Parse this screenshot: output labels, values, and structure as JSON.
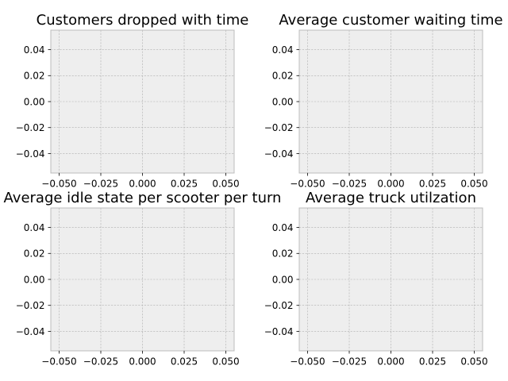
{
  "chart_data": [
    {
      "type": "line",
      "title": "Customers dropped with time",
      "xlabel": "",
      "ylabel": "",
      "xlim": [
        -0.055,
        0.055
      ],
      "ylim": [
        -0.055,
        0.055
      ],
      "xticks": [
        -0.05,
        -0.025,
        0.0,
        0.025,
        0.05
      ],
      "yticks": [
        -0.04,
        -0.02,
        0.0,
        0.02,
        0.04
      ],
      "xtick_labels": [
        "−0.050",
        "−0.025",
        "0.000",
        "0.025",
        "0.050"
      ],
      "ytick_labels": [
        "−0.04",
        "−0.02",
        "0.00",
        "0.02",
        "0.04"
      ],
      "grid": true,
      "series": [],
      "colors": {
        "face": "#eeeeee",
        "grid": "#b0b0b0",
        "spine": "#bcbcbc"
      }
    },
    {
      "type": "line",
      "title": "Average customer waiting time",
      "xlabel": "",
      "ylabel": "",
      "xlim": [
        -0.055,
        0.055
      ],
      "ylim": [
        -0.055,
        0.055
      ],
      "xticks": [
        -0.05,
        -0.025,
        0.0,
        0.025,
        0.05
      ],
      "yticks": [
        -0.04,
        -0.02,
        0.0,
        0.02,
        0.04
      ],
      "xtick_labels": [
        "−0.050",
        "−0.025",
        "0.000",
        "0.025",
        "0.050"
      ],
      "ytick_labels": [
        "−0.04",
        "−0.02",
        "0.00",
        "0.02",
        "0.04"
      ],
      "grid": true,
      "series": [],
      "colors": {
        "face": "#eeeeee",
        "grid": "#b0b0b0",
        "spine": "#bcbcbc"
      }
    },
    {
      "type": "line",
      "title": "Average idle state per scooter per turn",
      "xlabel": "",
      "ylabel": "",
      "xlim": [
        -0.055,
        0.055
      ],
      "ylim": [
        -0.055,
        0.055
      ],
      "xticks": [
        -0.05,
        -0.025,
        0.0,
        0.025,
        0.05
      ],
      "yticks": [
        -0.04,
        -0.02,
        0.0,
        0.02,
        0.04
      ],
      "xtick_labels": [
        "−0.050",
        "−0.025",
        "0.000",
        "0.025",
        "0.050"
      ],
      "ytick_labels": [
        "−0.04",
        "−0.02",
        "0.00",
        "0.02",
        "0.04"
      ],
      "grid": true,
      "series": [],
      "colors": {
        "face": "#eeeeee",
        "grid": "#b0b0b0",
        "spine": "#bcbcbc"
      }
    },
    {
      "type": "line",
      "title": "Average truck utilzation",
      "xlabel": "",
      "ylabel": "",
      "xlim": [
        -0.055,
        0.055
      ],
      "ylim": [
        -0.055,
        0.055
      ],
      "xticks": [
        -0.05,
        -0.025,
        0.0,
        0.025,
        0.05
      ],
      "yticks": [
        -0.04,
        -0.02,
        0.0,
        0.02,
        0.04
      ],
      "xtick_labels": [
        "−0.050",
        "−0.025",
        "0.000",
        "0.025",
        "0.050"
      ],
      "ytick_labels": [
        "−0.04",
        "−0.02",
        "0.00",
        "0.02",
        "0.04"
      ],
      "grid": true,
      "series": [],
      "colors": {
        "face": "#eeeeee",
        "grid": "#b0b0b0",
        "spine": "#bcbcbc"
      }
    }
  ]
}
